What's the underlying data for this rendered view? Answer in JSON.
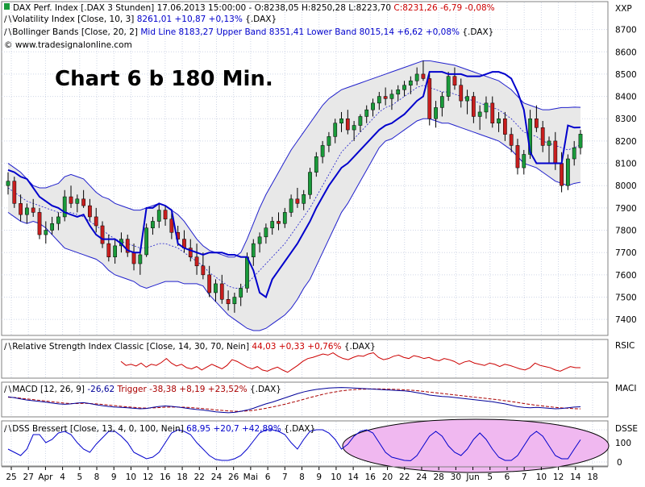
{
  "colors": {
    "price_up": "#1a9a3a",
    "price_down": "#c81e1e",
    "volatility": "#0000cc",
    "bollinger": "#2020cc",
    "band_fill": "#e8e8e8",
    "rsi": "#cc0000",
    "macd": "#000099",
    "trigger": "#aa0000",
    "dss": "#0000cc",
    "highlight_fill": "#f0b8f0",
    "grid": "#cfd6e6",
    "title_text": "#000000"
  },
  "header": {
    "line1_prefix": "DAX Perf. Index [.DAX  3 Stunden] 17.06.2013 15:00:00 - O:8238,05 H:8250,28 L:8223,70",
    "line1_change": "C:8231,26 -6,79 -0,08%",
    "line2_prefix": "Volatility Index [Close, 10, 3]",
    "line2_values": "8261,01 +10,87 +0,13%",
    "line2_suffix": "{.DAX}",
    "line3_prefix": "Bollinger Bands [Close, 20, 2]",
    "line3_values": "Mid Line 8183,27 Upper Band 8351,41 Lower Band 8015,14 +6,62 +0,08%",
    "line3_suffix": "{.DAX}",
    "copyright": "© www.tradesignalonline.com",
    "overlay_title": "Chart 6 b 180 Min."
  },
  "panels": {
    "price": {
      "tag": "XXP"
    },
    "rsi": {
      "tag": "RSIC",
      "prefix": "Relative Strength Index Classic [Close, 14, 30, 70, Nein]",
      "values": "44,03 +0,33 +0,76%",
      "suffix": "{.DAX}"
    },
    "macd": {
      "tag": "MACI",
      "prefix": "MACD [12, 26, 9]",
      "value": "-26,62",
      "trigger": "Trigger -38,38 +8,19 +23,52%",
      "suffix": "{.DAX}"
    },
    "dss": {
      "tag": "DSSE",
      "prefix": "DSS Bressert [Close, 13, 4, 0, 100, Nein]",
      "values": "68,95 +20,7 +42,89%",
      "suffix": "{.DAX}",
      "tick_100": "100",
      "tick_0": "0"
    }
  },
  "chart_data": {
    "type": "line",
    "title": "Chart 6 b 180 Min.",
    "y_axis": {
      "ticks": [
        "8700",
        "8600",
        "8500",
        "8400",
        "8300",
        "8200",
        "8100",
        "8000",
        "7900",
        "7800",
        "7700",
        "7600",
        "7500",
        "7400"
      ],
      "range": [
        7350,
        8760
      ]
    },
    "x_axis": {
      "labels": [
        "25",
        "27",
        "Apr",
        "4",
        "5",
        "8",
        "9",
        "10",
        "12",
        "16",
        "18",
        "22",
        "24",
        "26",
        "Mai",
        "6",
        "7",
        "8",
        "9",
        "10",
        "14",
        "16",
        "20",
        "22",
        "24",
        "28",
        "30",
        "Jun",
        "5",
        "6",
        "7",
        "10",
        "12",
        "14",
        "18"
      ]
    },
    "grid": true,
    "candles": [
      [
        8000,
        8060,
        7960,
        8020
      ],
      [
        8020,
        8040,
        7900,
        7920
      ],
      [
        7920,
        7960,
        7840,
        7870
      ],
      [
        7870,
        7920,
        7830,
        7900
      ],
      [
        7900,
        7940,
        7860,
        7880
      ],
      [
        7880,
        7900,
        7760,
        7780
      ],
      [
        7780,
        7840,
        7740,
        7800
      ],
      [
        7800,
        7860,
        7780,
        7830
      ],
      [
        7830,
        7880,
        7800,
        7860
      ],
      [
        7860,
        7980,
        7840,
        7950
      ],
      [
        7950,
        8000,
        7900,
        7920
      ],
      [
        7920,
        7960,
        7880,
        7940
      ],
      [
        7940,
        7980,
        7900,
        7910
      ],
      [
        7910,
        7940,
        7840,
        7860
      ],
      [
        7860,
        7900,
        7790,
        7820
      ],
      [
        7820,
        7840,
        7720,
        7740
      ],
      [
        7740,
        7780,
        7660,
        7680
      ],
      [
        7680,
        7760,
        7650,
        7730
      ],
      [
        7730,
        7790,
        7700,
        7760
      ],
      [
        7760,
        7780,
        7680,
        7700
      ],
      [
        7700,
        7740,
        7620,
        7650
      ],
      [
        7650,
        7720,
        7600,
        7690
      ],
      [
        7690,
        7830,
        7680,
        7810
      ],
      [
        7810,
        7860,
        7780,
        7840
      ],
      [
        7840,
        7920,
        7810,
        7890
      ],
      [
        7890,
        7910,
        7820,
        7850
      ],
      [
        7850,
        7880,
        7760,
        7790
      ],
      [
        7790,
        7820,
        7730,
        7760
      ],
      [
        7760,
        7800,
        7700,
        7720
      ],
      [
        7720,
        7760,
        7660,
        7680
      ],
      [
        7680,
        7740,
        7600,
        7640
      ],
      [
        7640,
        7700,
        7580,
        7600
      ],
      [
        7600,
        7640,
        7500,
        7520
      ],
      [
        7520,
        7580,
        7480,
        7560
      ],
      [
        7560,
        7600,
        7470,
        7490
      ],
      [
        7490,
        7530,
        7440,
        7470
      ],
      [
        7470,
        7520,
        7430,
        7500
      ],
      [
        7500,
        7560,
        7460,
        7540
      ],
      [
        7540,
        7700,
        7520,
        7680
      ],
      [
        7680,
        7760,
        7640,
        7740
      ],
      [
        7740,
        7790,
        7700,
        7770
      ],
      [
        7770,
        7830,
        7740,
        7810
      ],
      [
        7810,
        7860,
        7780,
        7840
      ],
      [
        7840,
        7880,
        7800,
        7830
      ],
      [
        7830,
        7900,
        7810,
        7880
      ],
      [
        7880,
        7960,
        7860,
        7940
      ],
      [
        7940,
        7990,
        7900,
        7920
      ],
      [
        7920,
        7980,
        7890,
        7960
      ],
      [
        7960,
        8080,
        7940,
        8060
      ],
      [
        8060,
        8150,
        8040,
        8130
      ],
      [
        8130,
        8200,
        8100,
        8180
      ],
      [
        8180,
        8240,
        8150,
        8220
      ],
      [
        8220,
        8300,
        8190,
        8280
      ],
      [
        8280,
        8330,
        8240,
        8300
      ],
      [
        8300,
        8340,
        8230,
        8250
      ],
      [
        8250,
        8290,
        8200,
        8270
      ],
      [
        8270,
        8320,
        8240,
        8310
      ],
      [
        8310,
        8360,
        8280,
        8340
      ],
      [
        8340,
        8390,
        8310,
        8370
      ],
      [
        8370,
        8420,
        8340,
        8400
      ],
      [
        8400,
        8440,
        8360,
        8390
      ],
      [
        8390,
        8430,
        8340,
        8410
      ],
      [
        8410,
        8450,
        8380,
        8430
      ],
      [
        8430,
        8470,
        8400,
        8450
      ],
      [
        8450,
        8490,
        8410,
        8470
      ],
      [
        8470,
        8530,
        8450,
        8500
      ],
      [
        8500,
        8560,
        8470,
        8480
      ],
      [
        8480,
        8500,
        8270,
        8300
      ],
      [
        8300,
        8380,
        8260,
        8350
      ],
      [
        8350,
        8420,
        8310,
        8400
      ],
      [
        8400,
        8510,
        8380,
        8490
      ],
      [
        8490,
        8530,
        8430,
        8450
      ],
      [
        8450,
        8480,
        8350,
        8380
      ],
      [
        8380,
        8430,
        8320,
        8400
      ],
      [
        8400,
        8420,
        8280,
        8310
      ],
      [
        8310,
        8360,
        8250,
        8330
      ],
      [
        8330,
        8400,
        8300,
        8370
      ],
      [
        8370,
        8400,
        8260,
        8280
      ],
      [
        8280,
        8330,
        8240,
        8300
      ],
      [
        8300,
        8330,
        8200,
        8230
      ],
      [
        8230,
        8260,
        8150,
        8180
      ],
      [
        8180,
        8210,
        8050,
        8080
      ],
      [
        8080,
        8160,
        8050,
        8140
      ],
      [
        8140,
        8340,
        8120,
        8300
      ],
      [
        8300,
        8360,
        8240,
        8260
      ],
      [
        8260,
        8290,
        8150,
        8180
      ],
      [
        8180,
        8220,
        8100,
        8200
      ],
      [
        8200,
        8240,
        8070,
        8100
      ],
      [
        8100,
        8150,
        7970,
        8000
      ],
      [
        8000,
        8140,
        7980,
        8120
      ],
      [
        8120,
        8200,
        8090,
        8170
      ],
      [
        8170,
        8250,
        8140,
        8231
      ]
    ],
    "bollinger": {
      "mid": [
        7990,
        7970,
        7950,
        7930,
        7920,
        7910,
        7900,
        7890,
        7880,
        7880,
        7880,
        7870,
        7860,
        7840,
        7820,
        7800,
        7780,
        7760,
        7750,
        7740,
        7730,
        7720,
        7720,
        7730,
        7740,
        7740,
        7730,
        7720,
        7700,
        7680,
        7660,
        7640,
        7610,
        7590,
        7570,
        7550,
        7540,
        7540,
        7560,
        7590,
        7620,
        7650,
        7680,
        7710,
        7740,
        7780,
        7820,
        7860,
        7900,
        7950,
        8000,
        8050,
        8100,
        8150,
        8180,
        8210,
        8240,
        8270,
        8300,
        8330,
        8350,
        8360,
        8380,
        8400,
        8420,
        8440,
        8450,
        8440,
        8430,
        8420,
        8420,
        8410,
        8400,
        8390,
        8380,
        8370,
        8360,
        8350,
        8340,
        8320,
        8300,
        8270,
        8240,
        8230,
        8220,
        8200,
        8190,
        8180,
        8170,
        8160,
        8170,
        8183
      ],
      "upper": [
        8100,
        8080,
        8060,
        8030,
        8000,
        7990,
        7990,
        8000,
        8010,
        8040,
        8050,
        8040,
        8030,
        8000,
        7970,
        7950,
        7940,
        7920,
        7910,
        7900,
        7890,
        7890,
        7900,
        7910,
        7920,
        7910,
        7890,
        7870,
        7840,
        7800,
        7760,
        7730,
        7710,
        7700,
        7690,
        7680,
        7680,
        7700,
        7760,
        7830,
        7900,
        7960,
        8010,
        8060,
        8110,
        8160,
        8200,
        8240,
        8280,
        8320,
        8360,
        8390,
        8410,
        8430,
        8440,
        8450,
        8460,
        8470,
        8480,
        8490,
        8500,
        8510,
        8520,
        8530,
        8540,
        8550,
        8560,
        8560,
        8555,
        8550,
        8545,
        8540,
        8530,
        8520,
        8510,
        8500,
        8490,
        8480,
        8470,
        8450,
        8430,
        8400,
        8370,
        8360,
        8350,
        8340,
        8340,
        8345,
        8350,
        8350,
        8352,
        8351
      ],
      "lower": [
        7880,
        7860,
        7840,
        7830,
        7840,
        7830,
        7810,
        7780,
        7750,
        7720,
        7710,
        7700,
        7690,
        7680,
        7670,
        7650,
        7620,
        7600,
        7590,
        7580,
        7570,
        7550,
        7540,
        7550,
        7560,
        7570,
        7570,
        7570,
        7560,
        7560,
        7560,
        7550,
        7510,
        7480,
        7450,
        7420,
        7400,
        7380,
        7360,
        7350,
        7350,
        7360,
        7380,
        7400,
        7420,
        7450,
        7490,
        7540,
        7580,
        7640,
        7700,
        7760,
        7820,
        7880,
        7920,
        7970,
        8020,
        8070,
        8120,
        8170,
        8200,
        8210,
        8230,
        8250,
        8270,
        8290,
        8300,
        8300,
        8290,
        8280,
        8280,
        8270,
        8260,
        8250,
        8240,
        8230,
        8220,
        8210,
        8200,
        8180,
        8160,
        8130,
        8100,
        8090,
        8080,
        8060,
        8040,
        8020,
        8010,
        8000,
        8010,
        8015
      ]
    },
    "volatility": [
      8070,
      8060,
      8040,
      8030,
      7990,
      7950,
      7930,
      7910,
      7900,
      7880,
      7870,
      7860,
      7870,
      7820,
      7780,
      7760,
      7760,
      7760,
      7740,
      7710,
      7700,
      7700,
      7900,
      7900,
      7920,
      7910,
      7890,
      7740,
      7720,
      7710,
      7700,
      7690,
      7700,
      7700,
      7700,
      7690,
      7690,
      7680,
      7680,
      7620,
      7520,
      7500,
      7580,
      7620,
      7660,
      7700,
      7740,
      7790,
      7840,
      7900,
      7950,
      8000,
      8040,
      8080,
      8100,
      8130,
      8160,
      8190,
      8220,
      8250,
      8270,
      8280,
      8300,
      8320,
      8350,
      8380,
      8400,
      8510,
      8510,
      8510,
      8500,
      8500,
      8500,
      8490,
      8490,
      8490,
      8500,
      8510,
      8510,
      8500,
      8480,
      8420,
      8340,
      8150,
      8100,
      8100,
      8100,
      8100,
      8100,
      8270,
      8260,
      8261
    ],
    "rsi": [
      55,
      48,
      50,
      47,
      52,
      45,
      50,
      48,
      53,
      60,
      52,
      47,
      50,
      44,
      42,
      46,
      40,
      45,
      50,
      46,
      42,
      48,
      58,
      55,
      50,
      45,
      42,
      46,
      40,
      38,
      42,
      45,
      40,
      36,
      42,
      48,
      55,
      60,
      62,
      65,
      68,
      66,
      70,
      64,
      60,
      58,
      62,
      65,
      64,
      68,
      70,
      62,
      58,
      60,
      64,
      66,
      62,
      60,
      65,
      63,
      60,
      62,
      58,
      56,
      60,
      58,
      55,
      50,
      54,
      56,
      52,
      50,
      48,
      52,
      50,
      46,
      50,
      48,
      45,
      42,
      40,
      44,
      52,
      48,
      46,
      44,
      40,
      38,
      42,
      46,
      44,
      44
    ],
    "macd": [
      30,
      25,
      18,
      12,
      8,
      4,
      0,
      -5,
      -10,
      -12,
      -10,
      -5,
      -3,
      -8,
      -15,
      -20,
      -25,
      -28,
      -30,
      -32,
      -35,
      -38,
      -36,
      -30,
      -25,
      -22,
      -24,
      -28,
      -33,
      -38,
      -42,
      -45,
      -50,
      -55,
      -58,
      -60,
      -58,
      -52,
      -45,
      -35,
      -22,
      -10,
      0,
      12,
      24,
      36,
      48,
      58,
      66,
      72,
      76,
      80,
      82,
      83,
      82,
      80,
      78,
      76,
      74,
      72,
      70,
      68,
      66,
      64,
      60,
      54,
      48,
      40,
      36,
      32,
      30,
      26,
      22,
      18,
      14,
      10,
      6,
      2,
      -4,
      -10,
      -18,
      -26,
      -30,
      -32,
      -30,
      -32,
      -35,
      -38,
      -36,
      -32,
      -28,
      -26.6
    ],
    "trigger": [
      28,
      26,
      22,
      18,
      14,
      10,
      6,
      2,
      -2,
      -6,
      -8,
      -8,
      -7,
      -8,
      -10,
      -13,
      -17,
      -20,
      -24,
      -27,
      -30,
      -33,
      -34,
      -33,
      -31,
      -29,
      -28,
      -28,
      -29,
      -31,
      -34,
      -37,
      -40,
      -44,
      -47,
      -50,
      -52,
      -52,
      -50,
      -47,
      -41,
      -35,
      -28,
      -20,
      -12,
      -3,
      6,
      16,
      26,
      35,
      44,
      52,
      58,
      64,
      68,
      71,
      73,
      74,
      75,
      75,
      74,
      73,
      72,
      70,
      68,
      65,
      61,
      57,
      53,
      49,
      45,
      41,
      37,
      33,
      29,
      25,
      21,
      17,
      13,
      8,
      3,
      -2,
      -8,
      -13,
      -18,
      -22,
      -26,
      -30,
      -33,
      -35,
      -37,
      -38.4
    ],
    "dss": [
      40,
      30,
      20,
      40,
      85,
      85,
      60,
      70,
      90,
      95,
      85,
      60,
      40,
      30,
      55,
      75,
      95,
      95,
      80,
      60,
      30,
      20,
      10,
      15,
      30,
      60,
      90,
      100,
      95,
      85,
      60,
      40,
      20,
      8,
      5,
      5,
      10,
      20,
      40,
      65,
      90,
      100,
      100,
      95,
      85,
      60,
      40,
      70,
      95,
      100,
      100,
      90,
      70,
      40,
      55,
      80,
      95,
      100,
      90,
      60,
      30,
      15,
      10,
      5,
      4,
      20,
      50,
      80,
      95,
      80,
      50,
      30,
      20,
      40,
      70,
      90,
      70,
      40,
      15,
      5,
      5,
      20,
      50,
      80,
      95,
      80,
      50,
      20,
      10,
      10,
      40,
      69
    ]
  }
}
